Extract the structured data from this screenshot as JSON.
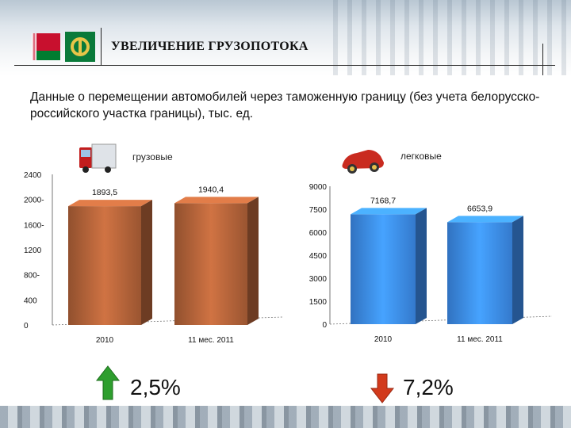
{
  "header": {
    "title": "УВЕЛИЧЕНИЕ ГРУЗОПОТОКА"
  },
  "subtitle": "Данные о перемещении автомобилей через таможенную границу (без учета белорусско-российского участка границы), тыс. ед.",
  "colors": {
    "truck_bar": "#b5643a",
    "car_bar": "#3d8ef0",
    "up_arrow": "#2e9e2e",
    "down_arrow": "#d23a1c"
  },
  "icons": {
    "flag": "belarus-flag-icon",
    "truck": "truck-icon",
    "car": "car-icon",
    "up": "arrow-up-icon",
    "down": "arrow-down-icon"
  },
  "chart_data": [
    {
      "type": "bar",
      "label": "грузовые",
      "categories": [
        "2010",
        "11 мес. 2011"
      ],
      "values": [
        1893.5,
        1940.4
      ],
      "value_labels": [
        "1893,5",
        "1940,4"
      ],
      "yticks": [
        "0",
        "400",
        "800-",
        "1200",
        "1600-",
        "2000-",
        "2400"
      ],
      "ylim": [
        0,
        2400
      ],
      "change": "2,5%",
      "trend": "up"
    },
    {
      "type": "bar",
      "label": "легковые",
      "categories": [
        "2010",
        "11 мес. 2011"
      ],
      "values": [
        7168.7,
        6653.9
      ],
      "value_labels": [
        "7168,7",
        "6653,9"
      ],
      "yticks": [
        "0",
        "1500",
        "3000",
        "4500",
        "6000",
        "7500",
        "9000"
      ],
      "ylim": [
        0,
        9000
      ],
      "change": "7,2%",
      "trend": "down"
    }
  ]
}
